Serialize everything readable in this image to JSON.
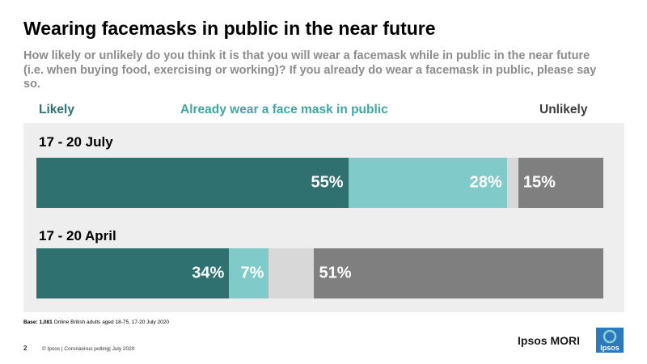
{
  "title": "Wearing facemasks in public in the near future",
  "subtitle": "How likely or unlikely do you think it is that you will wear a facemask while in public in the near future (i.e. when buying food, exercising or working)? If you already do wear a facemask in public, please say so.",
  "legend": {
    "likely": "Likely",
    "already": "Already wear a face mask in public",
    "unlikely": "Unlikely"
  },
  "colors": {
    "likely": "#2e7170",
    "already": "#80cbc9",
    "dont_know": "#d8d8d8",
    "unlikely": "#7f7f7f",
    "likely_text": "#2e7170",
    "already_text": "#3fa6a3",
    "unlikely_text": "#3c3c3c"
  },
  "chart_data": {
    "type": "bar",
    "orientation": "horizontal-stacked",
    "categories": [
      "17 - 20 July",
      "17 - 20 April"
    ],
    "series": [
      {
        "name": "Likely",
        "values": [
          55,
          34
        ],
        "labels": [
          "55%",
          "34%"
        ]
      },
      {
        "name": "Already wear a face mask in public",
        "values": [
          28,
          7
        ],
        "labels": [
          "28%",
          "7%"
        ]
      },
      {
        "values": [
          2,
          8
        ],
        "labels": [
          "",
          ""
        ]
      },
      {
        "name": "Unlikely",
        "values": [
          15,
          51
        ],
        "labels": [
          "15%",
          "51%"
        ]
      }
    ],
    "legend_position": "top"
  },
  "base_bold": "Base: 1,081",
  "base_rest": " Online British adults aged 18-75, 17-20 July 2020",
  "page_number": "2",
  "footer": "© Ipsos | Coronavirus polling| July 2020",
  "brand": "Ipsos MORI",
  "logo_text": "Ipsos"
}
